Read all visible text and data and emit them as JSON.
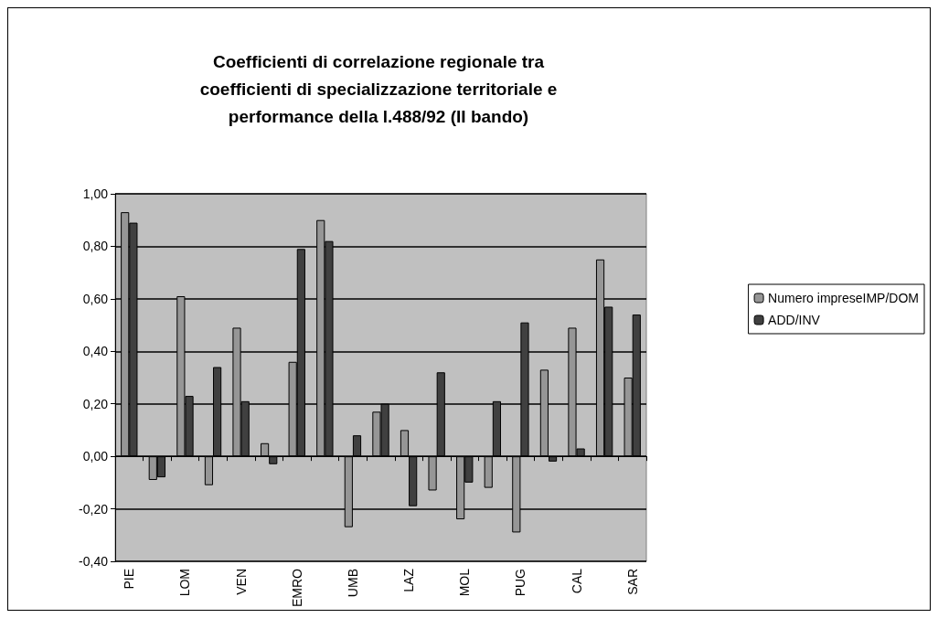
{
  "chart_data": {
    "type": "bar",
    "title": "Coefficienti di correlazione regionale tra\ncoefficienti di specializzazione territoriale e\nperformance della l.488/92 (II bando)",
    "categories": [
      "PIE",
      null,
      "LOM",
      null,
      "VEN",
      null,
      "EMRO",
      null,
      "UMB",
      null,
      "LAZ",
      null,
      "MOL",
      null,
      "PUG",
      null,
      "CAL",
      null,
      "SAR"
    ],
    "series": [
      {
        "name": "Numero impreseIMP/DOM",
        "color": "#969696",
        "values": [
          0.93,
          -0.09,
          0.61,
          -0.11,
          0.49,
          0.05,
          0.36,
          0.9,
          -0.27,
          0.17,
          0.1,
          -0.13,
          -0.24,
          -0.12,
          -0.29,
          0.33,
          0.49,
          0.75,
          0.3
        ]
      },
      {
        "name": "ADD/INV",
        "color": "#404040",
        "values": [
          0.89,
          -0.08,
          0.23,
          0.34,
          0.21,
          -0.03,
          0.79,
          0.82,
          0.08,
          0.2,
          -0.19,
          0.32,
          -0.1,
          0.21,
          0.51,
          -0.02,
          0.03,
          0.57,
          0.54
        ]
      }
    ],
    "ylim": [
      -0.4,
      1
    ],
    "yticks": [
      {
        "value": -0.4,
        "label": "-0,40"
      },
      {
        "value": -0.2,
        "label": "-0,20"
      },
      {
        "value": 0,
        "label": "0,00"
      },
      {
        "value": 0.2,
        "label": "0,20"
      },
      {
        "value": 0.4,
        "label": "0,40"
      },
      {
        "value": 0.6,
        "label": "0,60"
      },
      {
        "value": 0.8,
        "label": "0,80"
      },
      {
        "value": 1,
        "label": "1,00"
      }
    ],
    "grid": "y",
    "legend": "right"
  }
}
